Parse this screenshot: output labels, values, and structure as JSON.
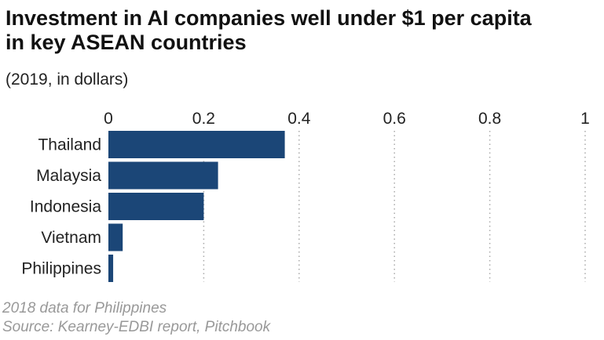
{
  "chart_data": {
    "type": "bar",
    "orientation": "horizontal",
    "title": "Investment in AI companies well under $1 per capita in key ASEAN countries",
    "subtitle": "(2019, in dollars)",
    "categories": [
      "Thailand",
      "Malaysia",
      "Indonesia",
      "Vietnam",
      "Philippines"
    ],
    "values": [
      0.37,
      0.23,
      0.2,
      0.03,
      0.01
    ],
    "xlim": [
      0,
      1
    ],
    "x_ticks": [
      "0",
      "0.2",
      "0.4",
      "0.6",
      "0.8",
      "1"
    ],
    "x_tick_values": [
      0,
      0.2,
      0.4,
      0.6,
      0.8,
      1
    ],
    "grid": "vertical dotted",
    "bar_color": "#1b4677",
    "notes": [
      "2018 data for Philippines",
      "Source: Kearney-EDBI report, Pitchbook"
    ]
  }
}
